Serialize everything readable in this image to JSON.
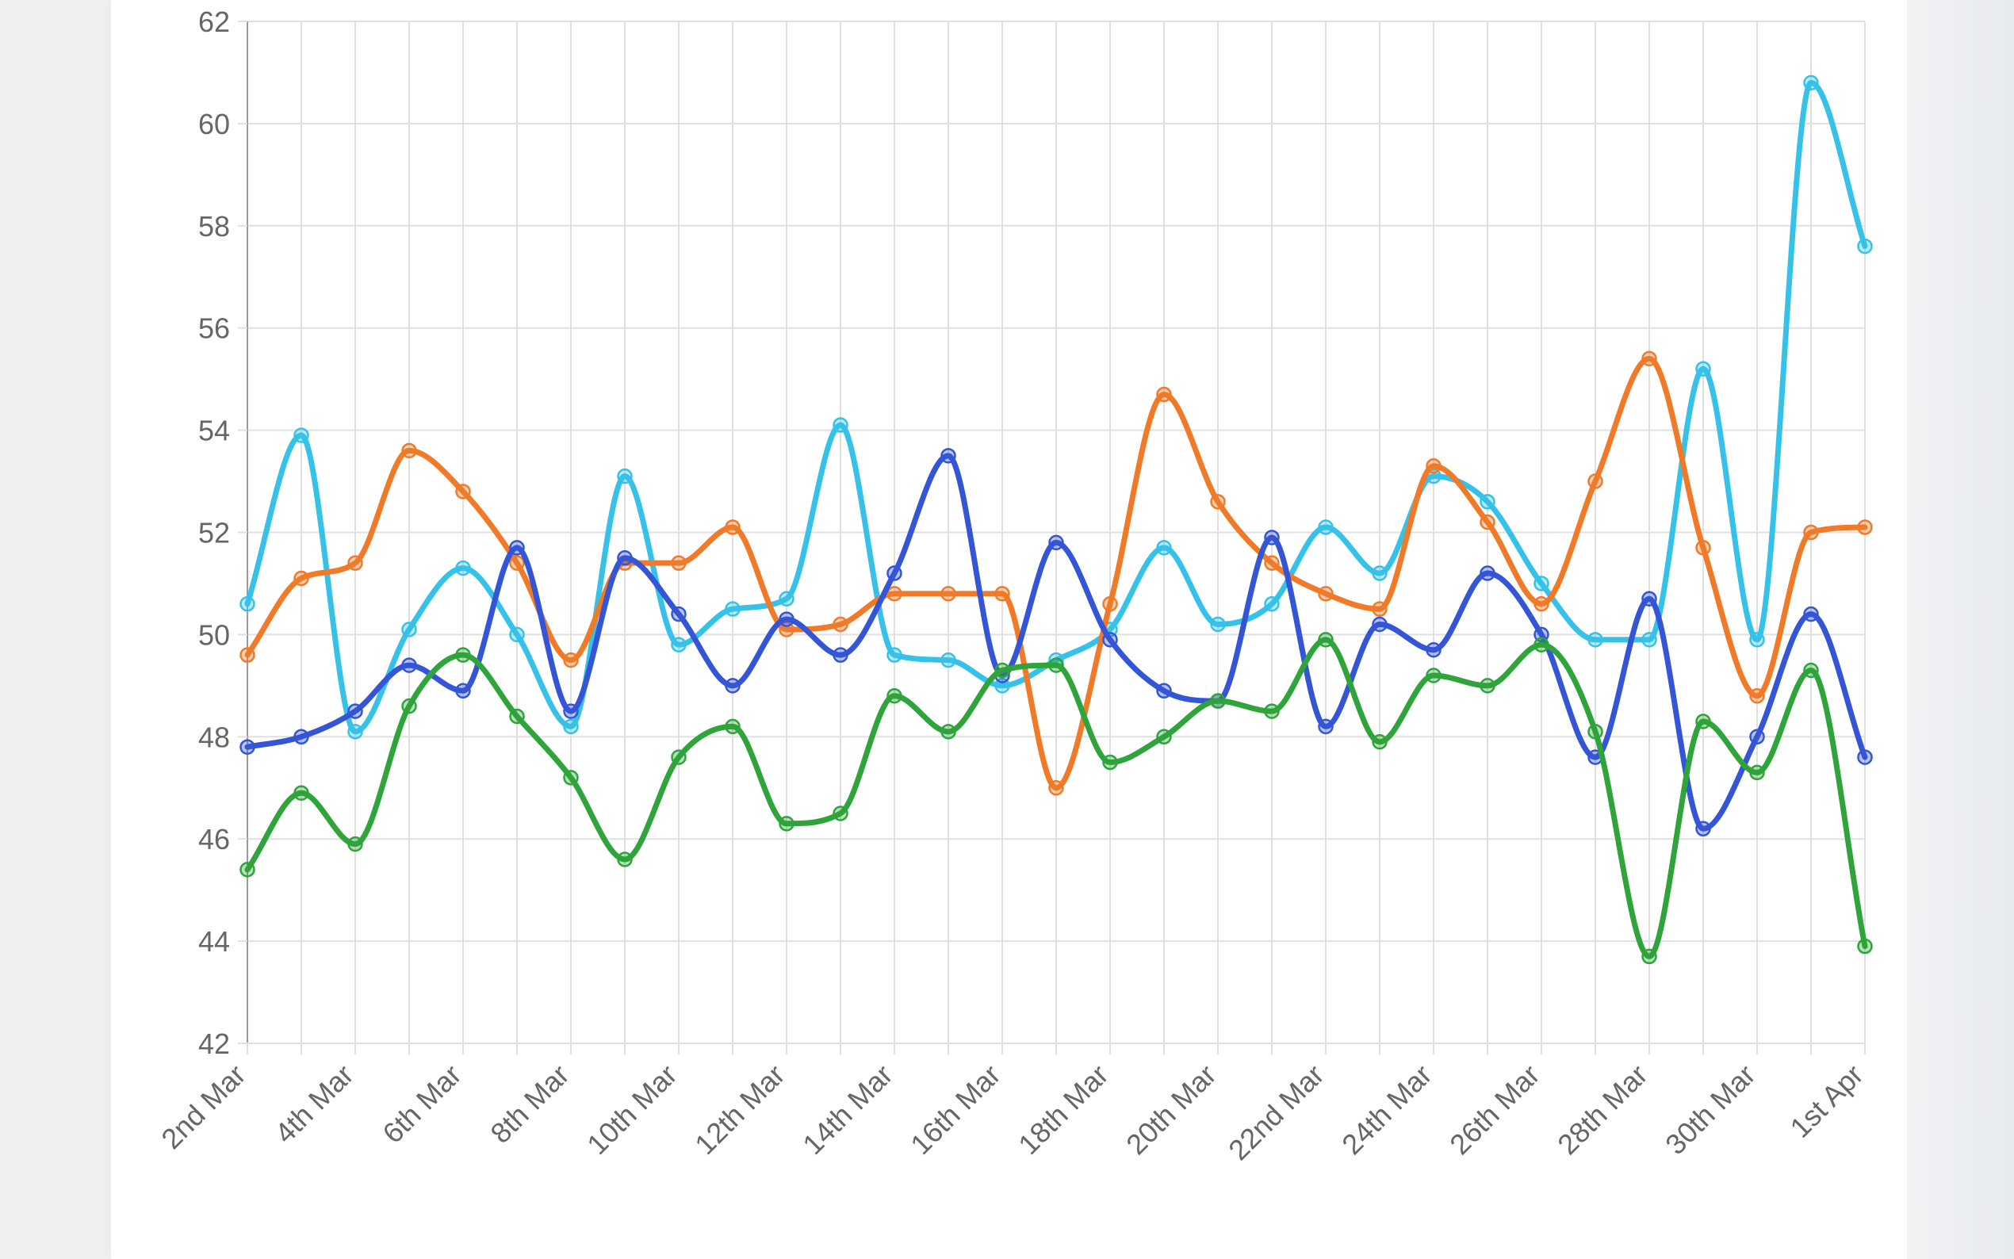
{
  "chart_data": {
    "type": "line",
    "title": "",
    "xlabel": "",
    "ylabel": "",
    "ylim": [
      42,
      62
    ],
    "y_ticks": [
      "42",
      "44",
      "46",
      "48",
      "50",
      "52",
      "54",
      "56",
      "58",
      "60",
      "62"
    ],
    "x_dates": [
      "2nd Mar",
      "3rd Mar",
      "4th Mar",
      "5th Mar",
      "6th Mar",
      "7th Mar",
      "8th Mar",
      "9th Mar",
      "10th Mar",
      "11th Mar",
      "12th Mar",
      "13th Mar",
      "14th Mar",
      "15th Mar",
      "16th Mar",
      "17th Mar",
      "18th Mar",
      "19th Mar",
      "20th Mar",
      "21st Mar",
      "22nd Mar",
      "23rd Mar",
      "24th Mar",
      "25th Mar",
      "26th Mar",
      "27th Mar",
      "28th Mar",
      "29th Mar",
      "30th Mar",
      "31st Mar",
      "1st Apr"
    ],
    "x_tick_labels": [
      "2nd Mar",
      "4th Mar",
      "6th Mar",
      "8th Mar",
      "10th Mar",
      "12th Mar",
      "14th Mar",
      "16th Mar",
      "18th Mar",
      "20th Mar",
      "22nd Mar",
      "24th Mar",
      "26th Mar",
      "28th Mar",
      "30th Mar",
      "1st Apr"
    ],
    "grid": true,
    "legend": "none",
    "series": [
      {
        "color": "#36c2e8",
        "values": [
          50.6,
          53.9,
          48.1,
          50.1,
          51.3,
          50.0,
          48.2,
          53.1,
          49.8,
          50.5,
          50.7,
          54.1,
          49.6,
          49.5,
          49.0,
          49.5,
          50.1,
          51.7,
          50.2,
          50.6,
          52.1,
          51.2,
          53.1,
          52.6,
          51.0,
          49.9,
          49.9,
          55.2,
          49.9,
          60.8,
          57.6
        ]
      },
      {
        "color": "#f07a28",
        "values": [
          49.6,
          51.1,
          51.4,
          53.6,
          52.8,
          51.4,
          49.5,
          51.4,
          51.4,
          52.1,
          50.1,
          50.2,
          50.8,
          50.8,
          50.8,
          47.0,
          50.6,
          54.7,
          52.6,
          51.4,
          50.8,
          50.5,
          53.3,
          52.2,
          50.6,
          53.0,
          55.4,
          51.7,
          48.8,
          52.0,
          52.1
        ]
      },
      {
        "color": "#3355d6",
        "values": [
          47.8,
          48.0,
          48.5,
          49.4,
          48.9,
          51.7,
          48.5,
          51.5,
          50.4,
          49.0,
          50.3,
          49.6,
          51.2,
          53.5,
          49.2,
          51.8,
          49.9,
          48.9,
          48.7,
          51.9,
          48.2,
          50.2,
          49.7,
          51.2,
          50.0,
          47.6,
          50.7,
          46.2,
          48.0,
          50.4,
          47.6
        ]
      },
      {
        "color": "#2ea43a",
        "values": [
          45.4,
          46.9,
          45.9,
          48.6,
          49.6,
          48.4,
          47.2,
          45.6,
          47.6,
          48.2,
          46.3,
          46.5,
          48.8,
          48.1,
          49.3,
          49.4,
          47.5,
          48.0,
          48.7,
          48.5,
          49.9,
          47.9,
          49.2,
          49.0,
          49.8,
          48.1,
          43.7,
          48.3,
          47.3,
          49.3,
          43.9
        ]
      }
    ]
  }
}
